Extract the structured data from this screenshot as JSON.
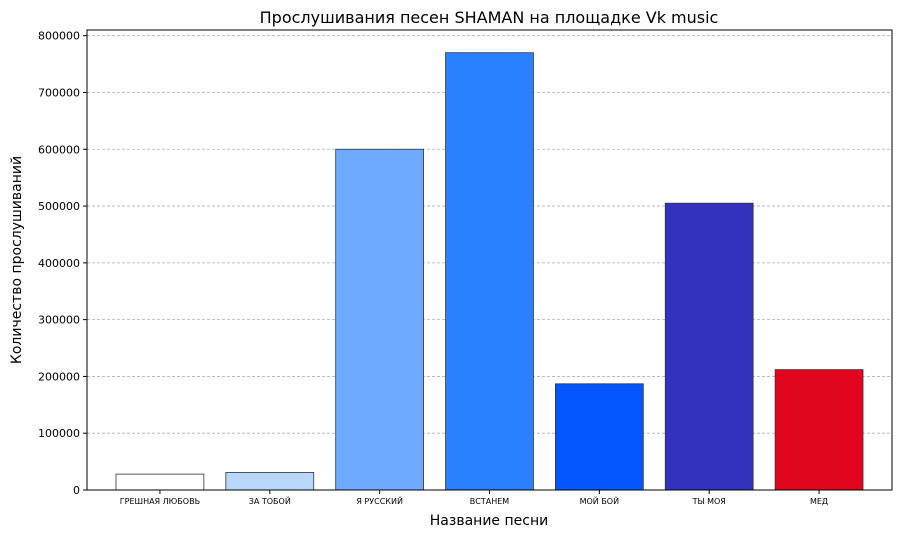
{
  "chart_data": {
    "type": "bar",
    "title": "Прослушивания песен SHAMAN на площадке Vk music",
    "xlabel": "Название песни",
    "ylabel": "Количество прослушиваний",
    "categories": [
      "ГРЕШНАЯ ЛЮБОВЬ",
      "ЗА ТОБОЙ",
      "Я РУССКИЙ",
      "ВСТАНЕМ",
      "МОЙ БОЙ",
      "ТЫ МОЯ",
      "МЕД"
    ],
    "values": [
      28000,
      31000,
      600000,
      770000,
      187000,
      505000,
      212000
    ],
    "colors": [
      "#ffffff",
      "#b8d8ff",
      "#6eaaff",
      "#2a80ff",
      "#0457ff",
      "#3232bf",
      "#e1061d"
    ],
    "ylim": [
      0,
      810000
    ],
    "yticks": [
      0,
      100000,
      200000,
      300000,
      400000,
      500000,
      600000,
      700000,
      800000
    ],
    "grid": "y-dashed",
    "legend": "none"
  }
}
